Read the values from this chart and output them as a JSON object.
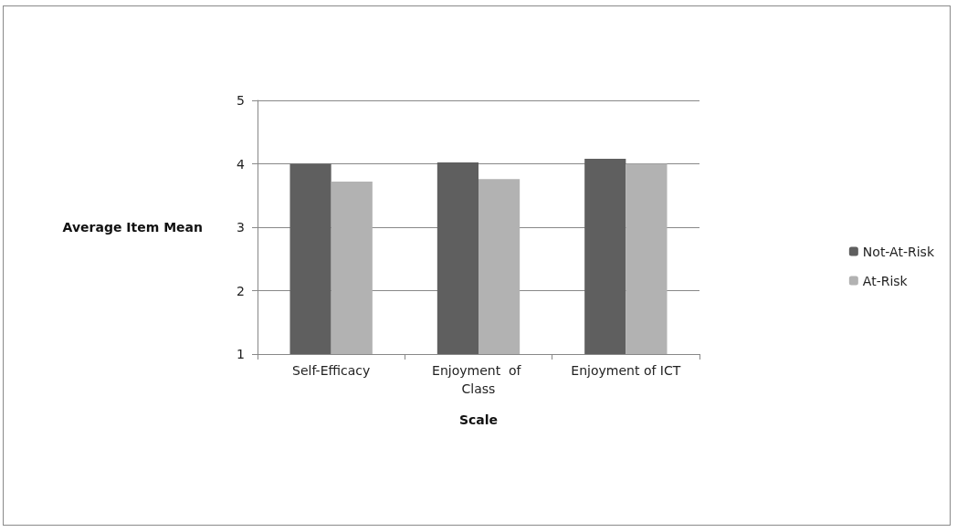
{
  "chart_data": {
    "type": "bar",
    "xlabel": "Scale",
    "ylabel": "Average Item Mean",
    "categories": [
      "Self-Efficacy",
      "Enjoyment  of Class",
      "Enjoyment of ICT"
    ],
    "series": [
      {
        "name": "Not-At-Risk",
        "color": "#5f5f5f",
        "values": [
          4.0,
          4.02,
          4.08
        ]
      },
      {
        "name": "At-Risk",
        "color": "#b2b2b2",
        "values": [
          3.72,
          3.76,
          4.0
        ]
      }
    ],
    "ylim": [
      1,
      5
    ],
    "yticks": [
      1,
      2,
      3,
      4,
      5
    ],
    "grid": "y",
    "legend": "right"
  }
}
